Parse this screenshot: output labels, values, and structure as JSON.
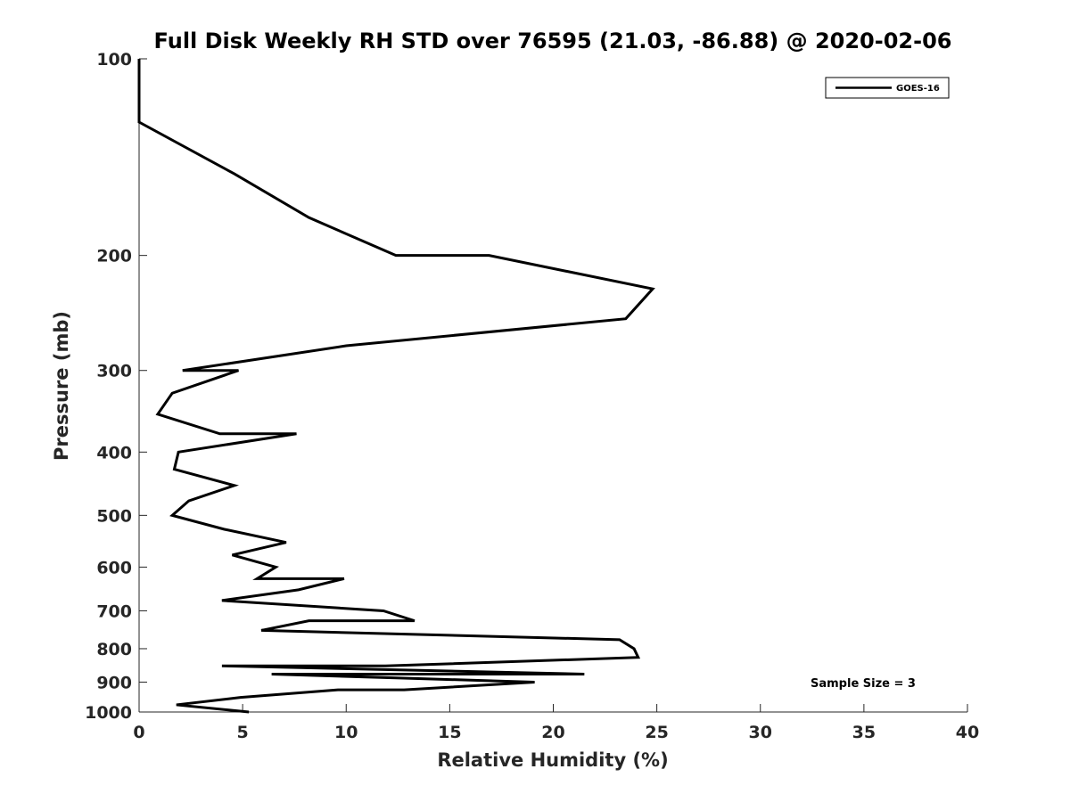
{
  "chart_data": {
    "type": "line",
    "title": "Full Disk Weekly RH STD over 76595 (21.03, -86.88) @ 2020-02-06",
    "xlabel": "Relative Humidity (%)",
    "ylabel": "Pressure (mb)",
    "xlim": [
      0,
      40
    ],
    "ylim": [
      100,
      1000
    ],
    "y_scale": "log",
    "y_reversed": true,
    "grid": false,
    "x_ticks": [
      0,
      5,
      10,
      15,
      20,
      25,
      30,
      35,
      40
    ],
    "y_ticks": [
      100,
      200,
      300,
      400,
      500,
      600,
      700,
      800,
      900,
      1000
    ],
    "x_tick_labels": [
      "0",
      "5",
      "10",
      "15",
      "20",
      "25",
      "30",
      "35",
      "40"
    ],
    "y_tick_labels": [
      "100",
      "200",
      "300",
      "400",
      "500",
      "600",
      "700",
      "800",
      "900",
      "1000"
    ],
    "legend": {
      "position": "top-right",
      "entries": [
        "GOES-16"
      ]
    },
    "annotation": "Sample Size = 3",
    "series": [
      {
        "name": "GOES-16",
        "color": "#000000",
        "points": [
          [
            0,
            100
          ],
          [
            0,
            125
          ],
          [
            4.6,
            150
          ],
          [
            8.2,
            175
          ],
          [
            12.4,
            200
          ],
          [
            16.9,
            200
          ],
          [
            24.8,
            225
          ],
          [
            23.5,
            250
          ],
          [
            10.0,
            275
          ],
          [
            2.1,
            300
          ],
          [
            4.8,
            300
          ],
          [
            1.6,
            325
          ],
          [
            0.9,
            350
          ],
          [
            3.9,
            375
          ],
          [
            7.6,
            375
          ],
          [
            1.9,
            400
          ],
          [
            1.7,
            425
          ],
          [
            4.6,
            450
          ],
          [
            2.4,
            475
          ],
          [
            1.6,
            500
          ],
          [
            4.1,
            525
          ],
          [
            7.1,
            550
          ],
          [
            4.5,
            575
          ],
          [
            6.6,
            600
          ],
          [
            5.7,
            625
          ],
          [
            9.9,
            625
          ],
          [
            7.7,
            650
          ],
          [
            4.0,
            675
          ],
          [
            11.8,
            700
          ],
          [
            13.3,
            725
          ],
          [
            8.2,
            725
          ],
          [
            5.9,
            750
          ],
          [
            23.2,
            775
          ],
          [
            23.9,
            800
          ],
          [
            24.1,
            825
          ],
          [
            11.9,
            850
          ],
          [
            4.0,
            850
          ],
          [
            21.5,
            875
          ],
          [
            6.4,
            875
          ],
          [
            19.1,
            900
          ],
          [
            12.8,
            925
          ],
          [
            9.6,
            925
          ],
          [
            4.9,
            950
          ],
          [
            1.8,
            975
          ],
          [
            5.3,
            1000
          ]
        ]
      }
    ]
  }
}
